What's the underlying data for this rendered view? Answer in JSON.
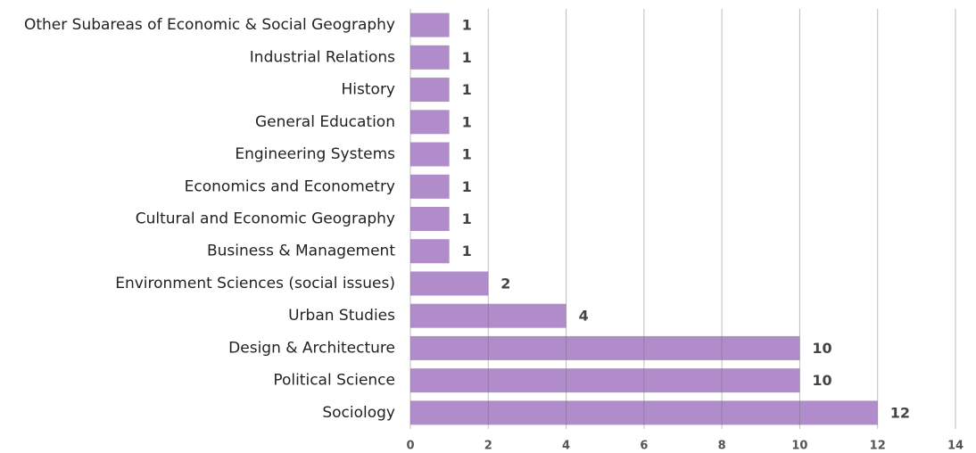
{
  "chart_data": {
    "type": "bar",
    "orientation": "horizontal",
    "categories": [
      "Other Subareas of Economic & Social Geography",
      "Industrial Relations",
      "History",
      "General Education",
      "Engineering Systems",
      "Economics and Econometry",
      "Cultural and Economic Geography",
      "Business & Management",
      "Environment Sciences (social issues)",
      "Urban Studies",
      "Design & Architecture",
      "Political Science",
      "Sociology"
    ],
    "values": [
      1,
      1,
      1,
      1,
      1,
      1,
      1,
      1,
      2,
      4,
      10,
      10,
      12
    ],
    "color": "#b08ccb",
    "xlim": [
      0,
      14
    ],
    "xticks": [
      0,
      2,
      4,
      6,
      8,
      10,
      12,
      14
    ],
    "grid": true
  }
}
